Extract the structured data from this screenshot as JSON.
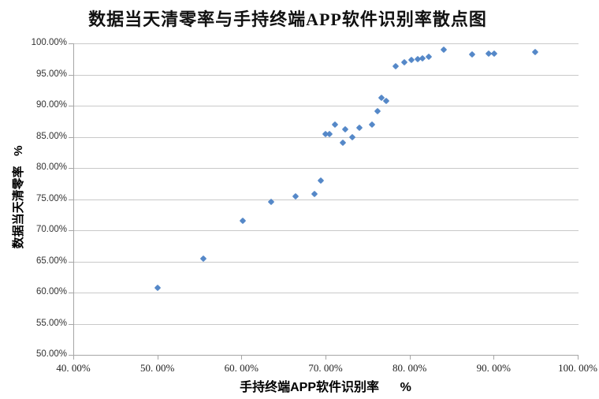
{
  "chart_data": {
    "type": "scatter",
    "title": "数据当天清零率与手持终端APP软件识别率散点图",
    "xlabel": "手持终端APP软件识别率      %",
    "ylabel": "数据当天清零率   %",
    "xlim": [
      40,
      100
    ],
    "ylim": [
      50,
      100
    ],
    "x_tick_labels": [
      "40. 00%",
      "50. 00%",
      "60. 00%",
      "70. 00%",
      "80. 00%",
      "90. 00%",
      "100. 00%"
    ],
    "y_tick_labels": [
      "100.00%",
      "95.00%",
      "90.00%",
      "85.00%",
      "80.00%",
      "75.00%",
      "70.00%",
      "65.00%",
      "60.00%",
      "55.00%",
      "50.00%"
    ],
    "grid": "horizontal",
    "legend": "none",
    "marker": "diamond",
    "points": [
      [
        50.0,
        60.8
      ],
      [
        55.5,
        65.5
      ],
      [
        60.2,
        71.5
      ],
      [
        63.5,
        74.5
      ],
      [
        66.4,
        75.4
      ],
      [
        68.7,
        75.8
      ],
      [
        69.4,
        78.0
      ],
      [
        70.0,
        85.4
      ],
      [
        70.5,
        85.4
      ],
      [
        71.1,
        87.0
      ],
      [
        72.1,
        84.0
      ],
      [
        72.3,
        86.2
      ],
      [
        73.2,
        85.0
      ],
      [
        74.0,
        86.5
      ],
      [
        75.5,
        86.9
      ],
      [
        76.2,
        89.1
      ],
      [
        76.7,
        91.3
      ],
      [
        77.2,
        90.7
      ],
      [
        78.3,
        96.3
      ],
      [
        79.4,
        96.9
      ],
      [
        80.2,
        97.3
      ],
      [
        81.0,
        97.5
      ],
      [
        81.5,
        97.6
      ],
      [
        82.3,
        97.8
      ],
      [
        84.1,
        99.0
      ],
      [
        87.4,
        98.2
      ],
      [
        89.4,
        98.4
      ],
      [
        90.1,
        98.4
      ],
      [
        94.9,
        98.6
      ]
    ]
  },
  "colors": {
    "marker": "#5588C8",
    "gridline": "#C9C9C9",
    "axis": "#A6A6A6",
    "title_text": "#111111",
    "tick_text": "#333333"
  }
}
